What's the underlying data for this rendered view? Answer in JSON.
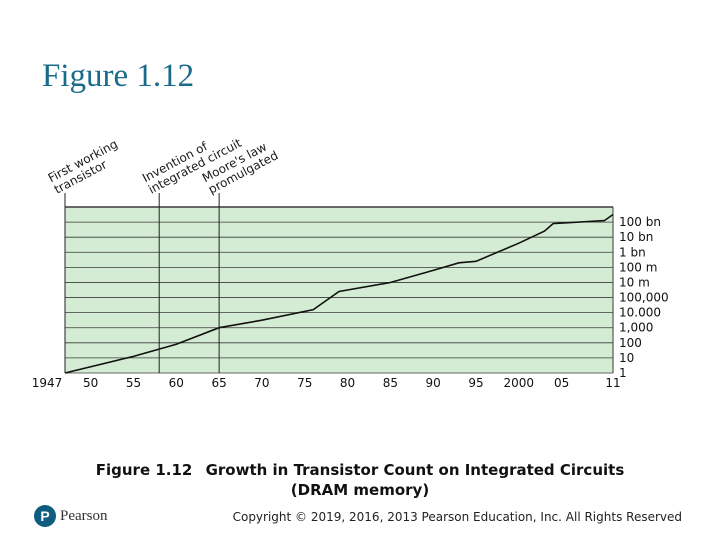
{
  "slide": {
    "title": "Figure 1.12",
    "caption_figure": "Figure 1.12",
    "caption_text_line1": "Growth in Transistor Count on Integrated Circuits",
    "caption_text_line2": "(DRAM memory)",
    "logo_letter": "P",
    "logo_text": "Pearson",
    "copyright": "Copyright © 2019, 2016, 2013 Pearson Education, Inc. All Rights Reserved",
    "colors": {
      "title": "#1a6a8a",
      "plot_bg": "#d3ecd3",
      "grid": "#3a3a3a",
      "line": "#111111",
      "logo": "#0e5d7f"
    }
  },
  "chart_data": {
    "type": "line",
    "title": "Growth in Transistor Count on Integrated Circuits (DRAM memory)",
    "x_tick_labels": [
      "1947",
      "50",
      "55",
      "60",
      "65",
      "70",
      "75",
      "80",
      "85",
      "90",
      "95",
      "2000",
      "05",
      "11"
    ],
    "x_tick_years": [
      1947,
      1950,
      1955,
      1960,
      1965,
      1970,
      1975,
      1980,
      1985,
      1990,
      1995,
      2000,
      2005,
      2011
    ],
    "xlim": [
      1947,
      2011
    ],
    "y_scale": "log",
    "y_tick_labels": [
      "1",
      "10",
      "100",
      "1,000",
      "10.000",
      "100,000",
      "10 m",
      "100 m",
      "1 bn",
      "10 bn",
      "100 bn"
    ],
    "ylim_log10": [
      0,
      11
    ],
    "grid": true,
    "annotations": [
      {
        "year": 1947,
        "lines": [
          "First working",
          "transistor"
        ]
      },
      {
        "year": 1958,
        "lines": [
          "Invention of",
          "integrated circuit"
        ]
      },
      {
        "year": 1965,
        "lines": [
          "Moore's law",
          "promulgated"
        ]
      }
    ],
    "series": [
      {
        "points": [
          [
            1947,
            0
          ],
          [
            1955,
            1.1
          ],
          [
            1960,
            1.9
          ],
          [
            1965,
            3.0
          ],
          [
            1970,
            3.5
          ],
          [
            1976,
            4.2
          ],
          [
            1979,
            5.4
          ],
          [
            1985,
            6.0
          ],
          [
            1990,
            6.8
          ],
          [
            1993,
            7.3
          ],
          [
            1995,
            7.4
          ],
          [
            2000,
            8.6
          ],
          [
            2003,
            9.4
          ],
          [
            2004,
            9.9
          ],
          [
            2010,
            10.1
          ],
          [
            2011,
            10.5
          ]
        ]
      }
    ]
  }
}
